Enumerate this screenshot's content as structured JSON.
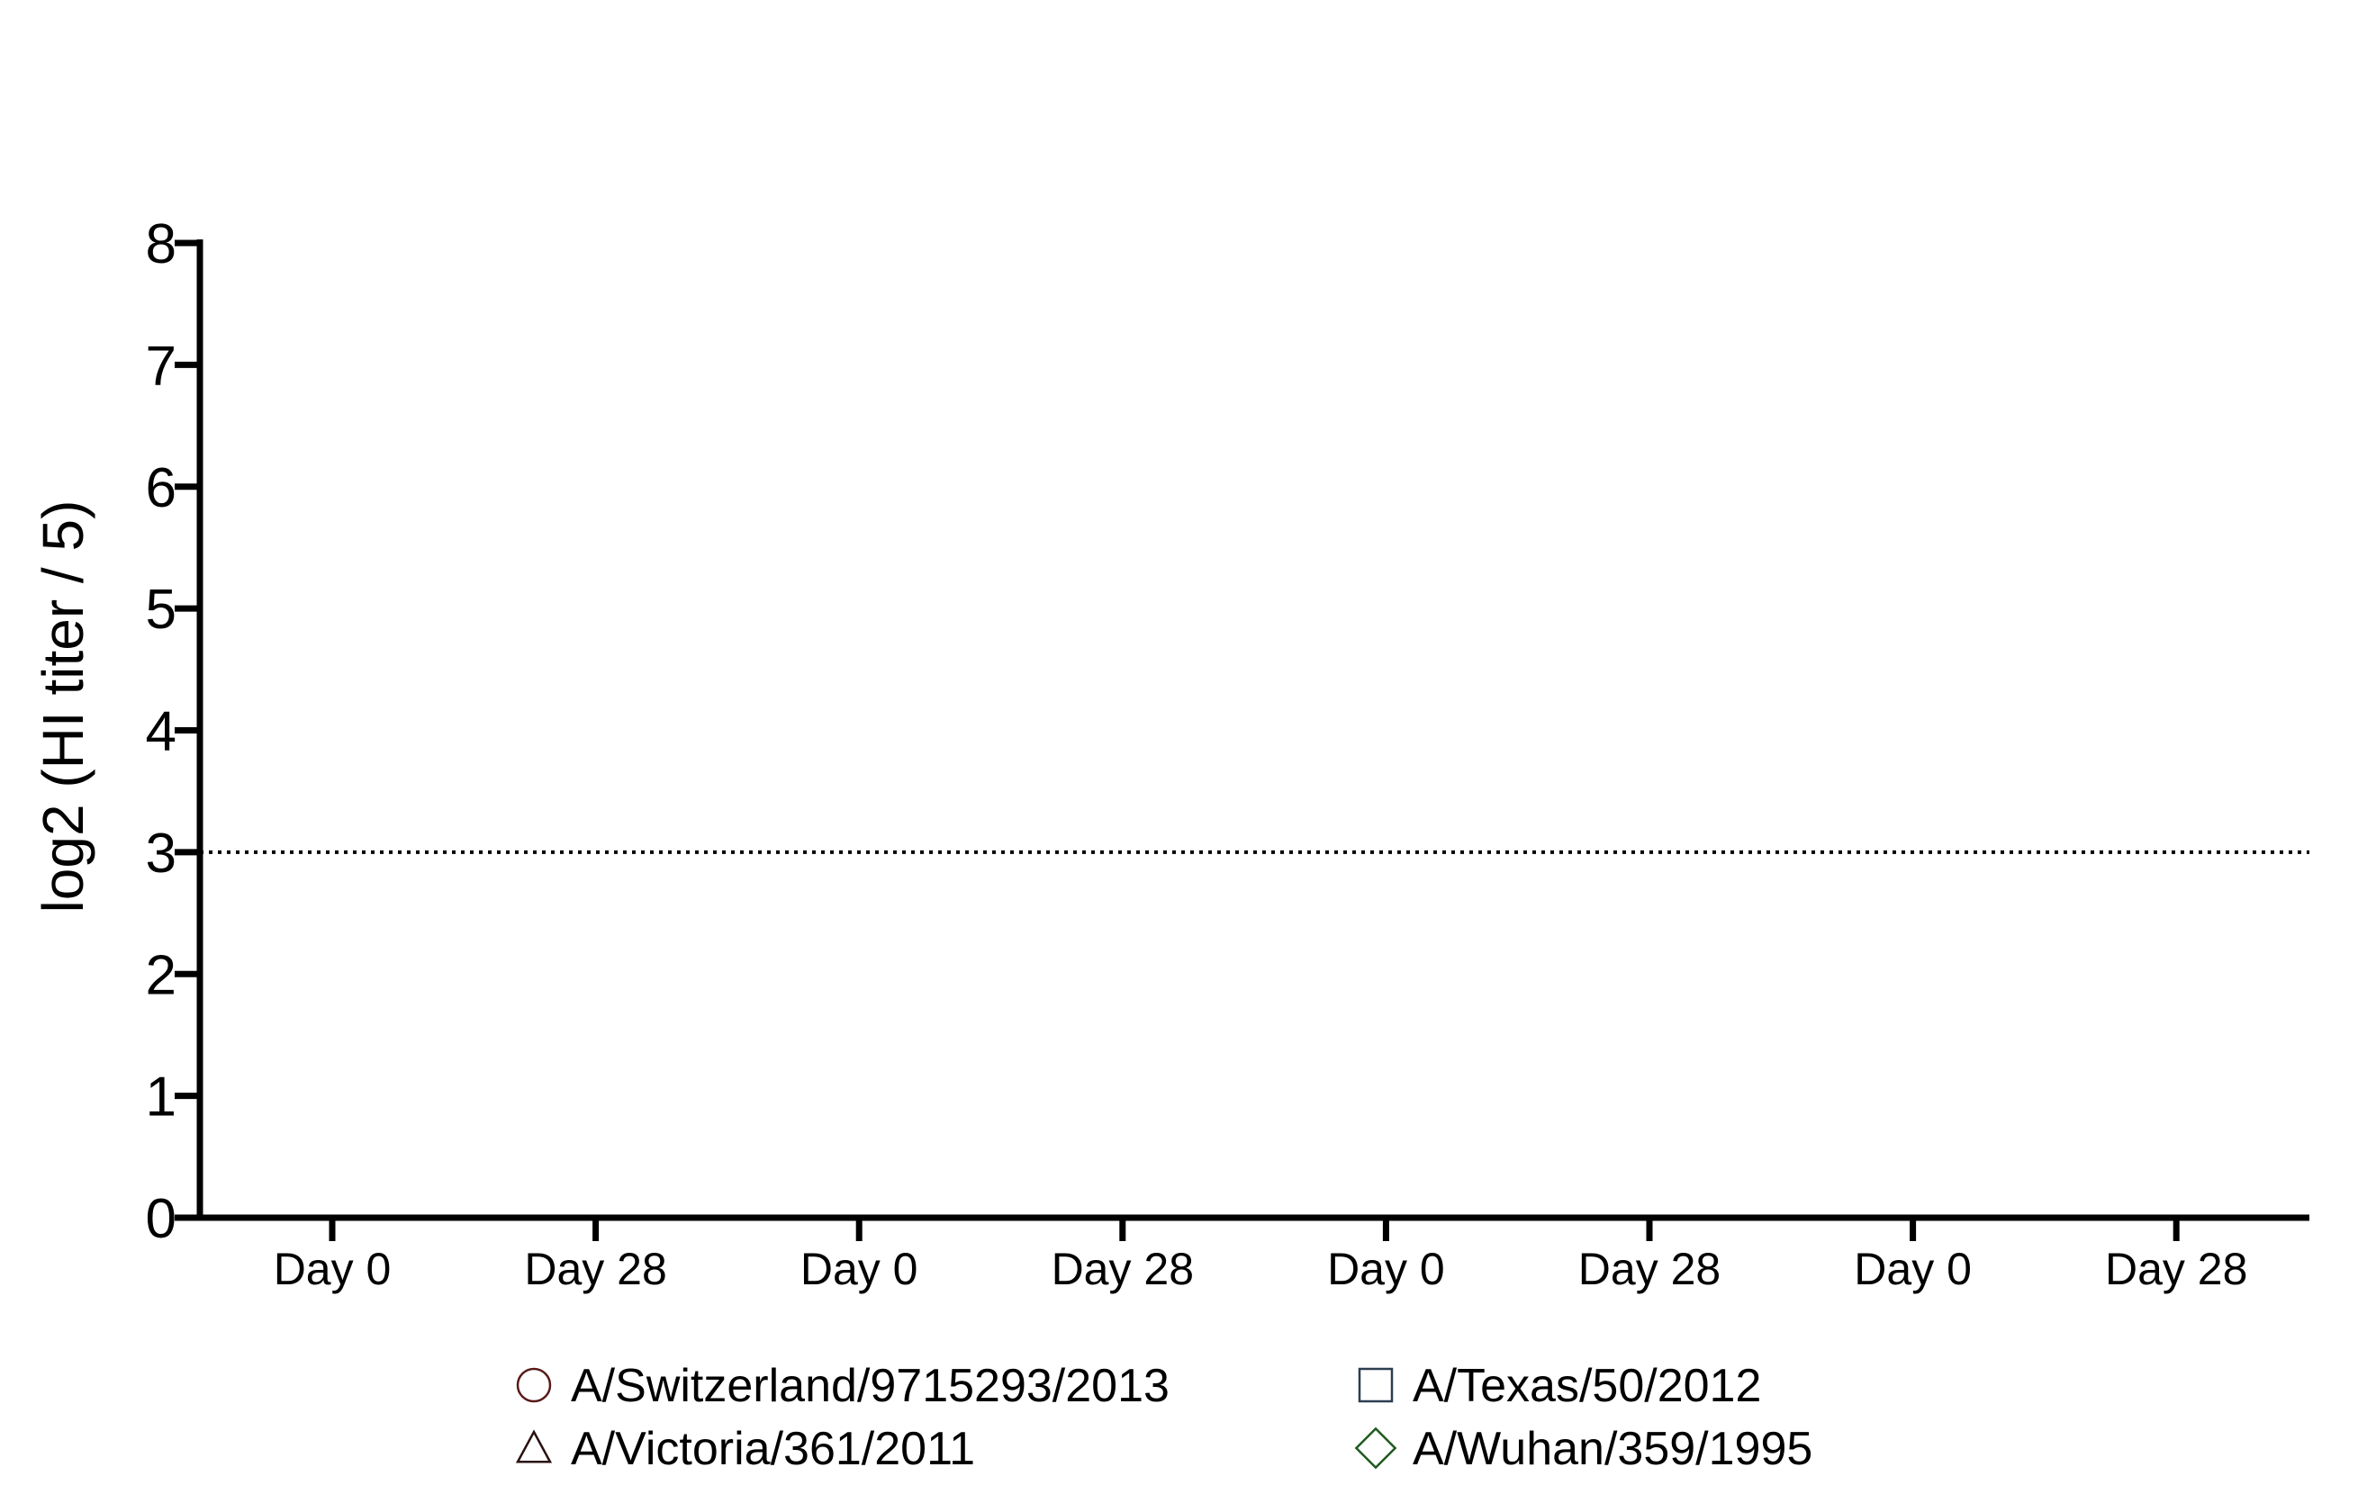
{
  "chart_data": {
    "type": "scatter",
    "title": "",
    "xlabel": "",
    "ylabel": "log2 (HI titer / 5)",
    "ylim": [
      0,
      8
    ],
    "yticks": [
      "0",
      "1",
      "2",
      "3",
      "4",
      "5",
      "6",
      "7",
      "8"
    ],
    "categories": [
      "Day 0",
      "Day 28",
      "Day 0",
      "Day 28",
      "Day 0",
      "Day 28",
      "Day 0",
      "Day 28"
    ],
    "reference_line": {
      "y": 3,
      "style": "dotted"
    },
    "grid": false,
    "legend_position": "bottom",
    "series": [
      {
        "name": "A/Switzerland/9715293/2013",
        "marker": "circle",
        "color": "#5a1a1a",
        "values": []
      },
      {
        "name": "A/Victoria/361/2011",
        "marker": "triangle",
        "color": "#2a1010",
        "values": []
      },
      {
        "name": "A/Texas/50/2012",
        "marker": "square",
        "color": "#2c3e50",
        "values": []
      },
      {
        "name": "A/Wuhan/359/1995",
        "marker": "diamond",
        "color": "#1e5a1e",
        "values": []
      }
    ]
  }
}
